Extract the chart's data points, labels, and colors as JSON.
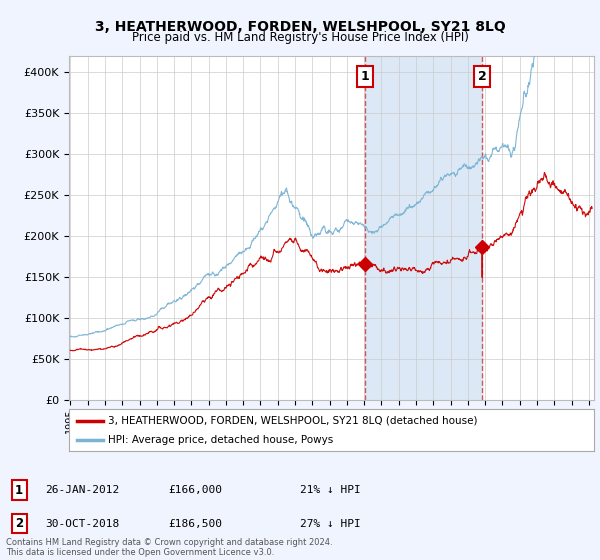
{
  "title": "3, HEATHERWOOD, FORDEN, WELSHPOOL, SY21 8LQ",
  "subtitle": "Price paid vs. HM Land Registry's House Price Index (HPI)",
  "legend_label_red": "3, HEATHERWOOD, FORDEN, WELSHPOOL, SY21 8LQ (detached house)",
  "legend_label_blue": "HPI: Average price, detached house, Powys",
  "annotation1_date": "26-JAN-2012",
  "annotation1_price": "£166,000",
  "annotation1_hpi": "21% ↓ HPI",
  "annotation2_date": "30-OCT-2018",
  "annotation2_price": "£186,500",
  "annotation2_hpi": "27% ↓ HPI",
  "footnote": "Contains HM Land Registry data © Crown copyright and database right 2024.\nThis data is licensed under the Open Government Licence v3.0.",
  "ylim": [
    0,
    420000
  ],
  "yticks": [
    0,
    50000,
    100000,
    150000,
    200000,
    250000,
    300000,
    350000,
    400000
  ],
  "xlim_start": 1994.92,
  "xlim_end": 2025.3,
  "sale1_x": 2012.07,
  "sale1_y": 166000,
  "sale2_x": 2018.83,
  "sale2_y": 186500,
  "red_color": "#cc0000",
  "blue_color": "#7ab3d4",
  "shade_color": "#dce8f5",
  "dashed_line_color": "#cc3333",
  "background_color": "#f0f4ff",
  "plot_bg_color": "#ffffff",
  "grid_color": "#cccccc"
}
